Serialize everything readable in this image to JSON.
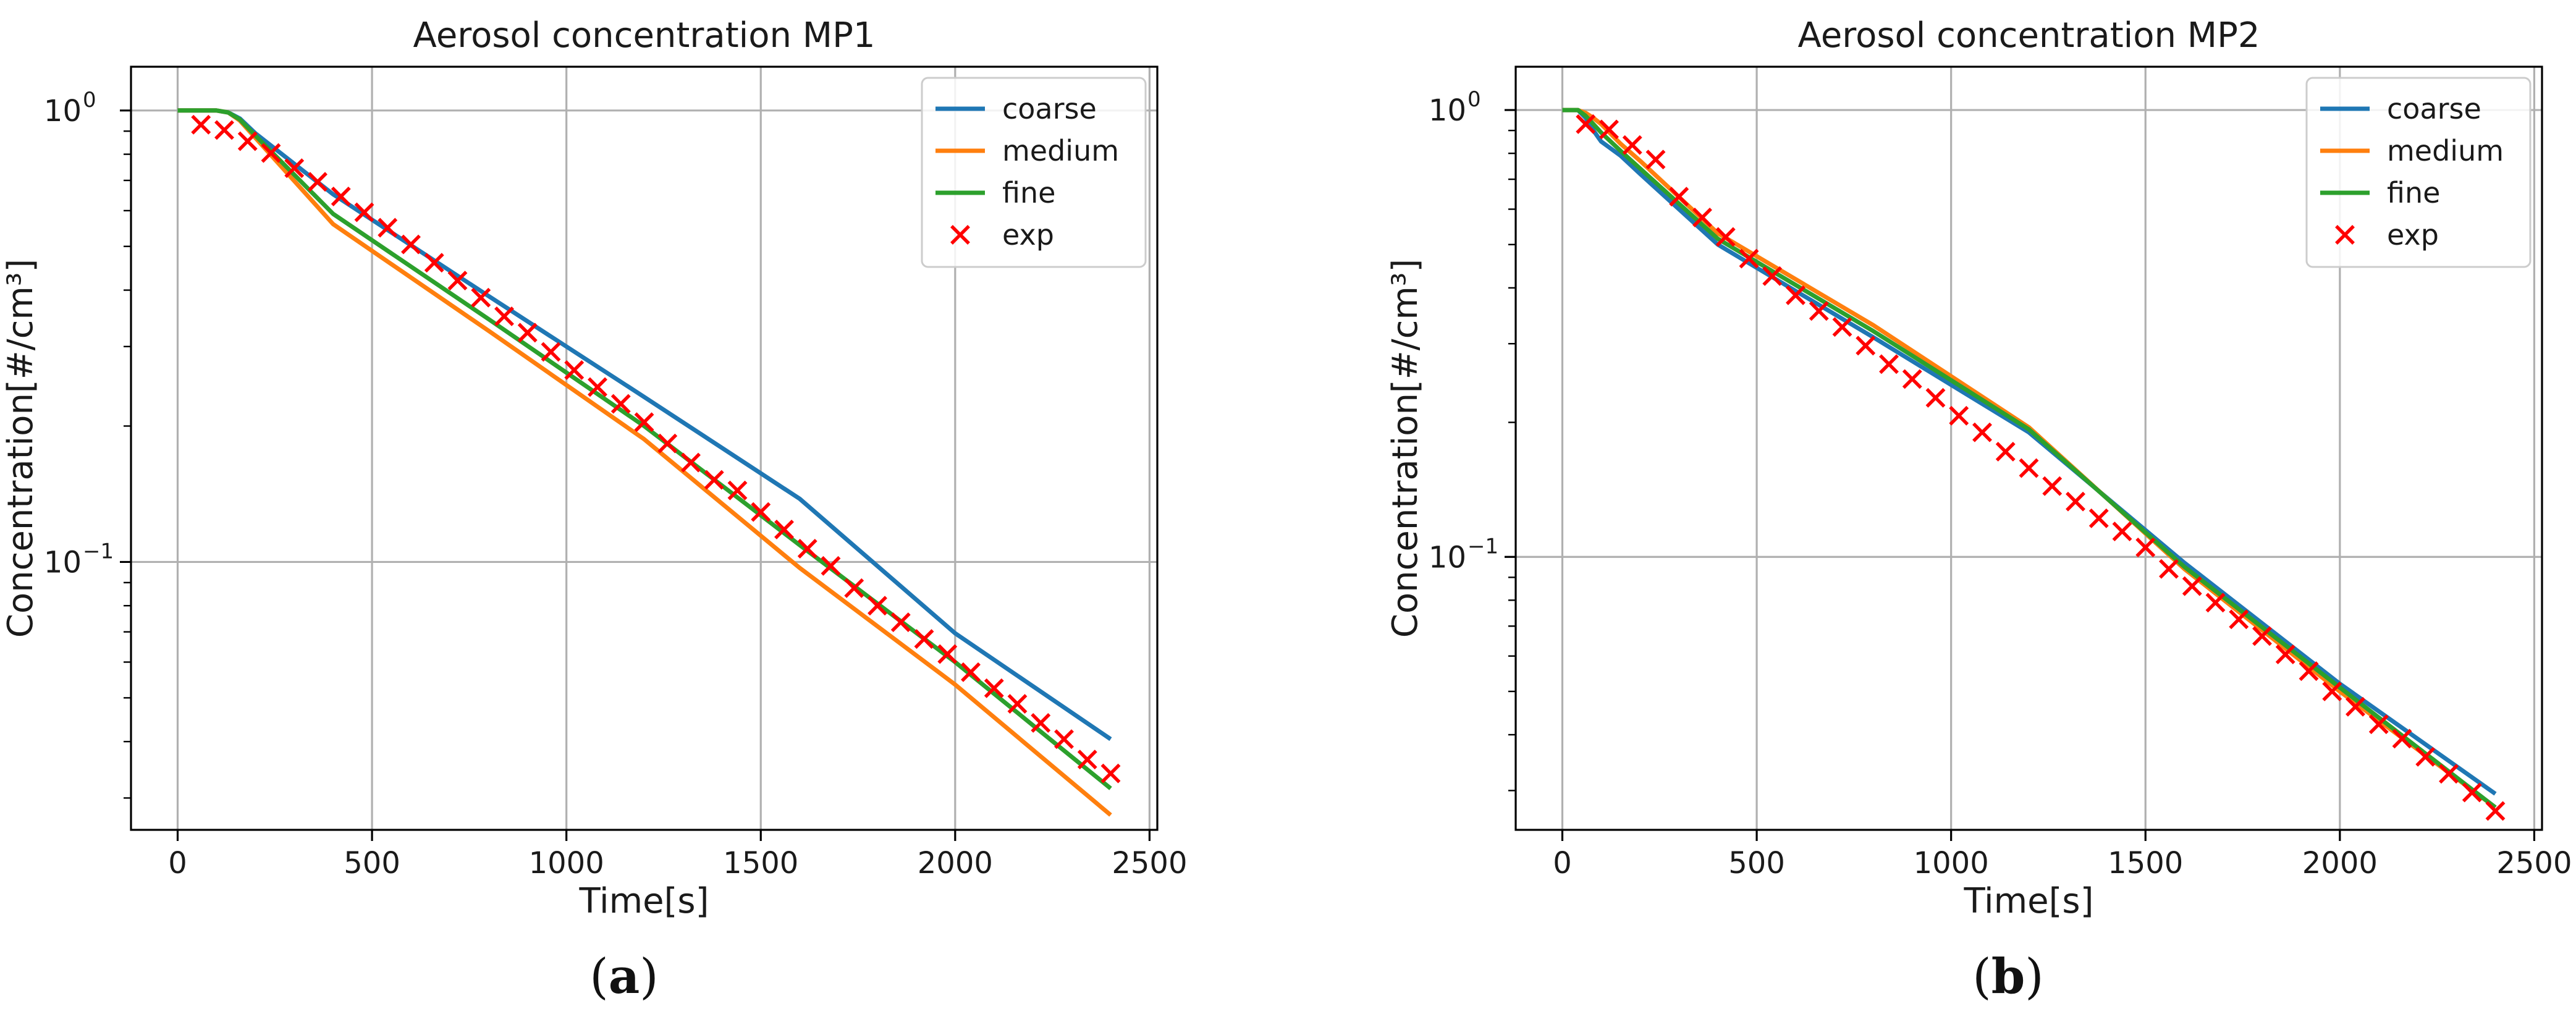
{
  "colors": {
    "coarse": "#1f77b4",
    "medium": "#ff7f0e",
    "fine": "#2ca02c",
    "exp": "#ff0000",
    "grid": "#b0b0b0",
    "axes": "#000000"
  },
  "chart_data": [
    {
      "type": "line",
      "panel_label": "a",
      "title": "Aerosol concentration MP1",
      "xlabel": "Time[s]",
      "ylabel": "Concentration[#/cm³]",
      "xscale": "linear",
      "yscale": "log",
      "xlim": [
        -120,
        2520
      ],
      "ylim": [
        0.0255,
        1.25
      ],
      "xticks": [
        0,
        500,
        1000,
        1500,
        2000,
        2500
      ],
      "xtick_labels": [
        "0",
        "500",
        "1000",
        "1500",
        "2000",
        "2500"
      ],
      "yticks": [
        1.0,
        0.1
      ],
      "ytick_labels": [
        {
          "base": "10",
          "exp": "0"
        },
        {
          "base": "10",
          "exp": "−1"
        }
      ],
      "grid": true,
      "legend_position": "top-right",
      "series": [
        {
          "name": "coarse",
          "style": "line",
          "x": [
            0,
            100,
            130,
            160,
            200,
            400,
            800,
            1200,
            1600,
            2000,
            2400
          ],
          "y": [
            1.0,
            1.0,
            0.99,
            0.96,
            0.89,
            0.652,
            0.388,
            0.232,
            0.138,
            0.0695,
            0.0405
          ]
        },
        {
          "name": "medium",
          "style": "line",
          "x": [
            0,
            100,
            130,
            160,
            200,
            400,
            800,
            1200,
            1600,
            2000,
            2400
          ],
          "y": [
            1.0,
            1.0,
            0.99,
            0.95,
            0.87,
            0.56,
            0.325,
            0.187,
            0.097,
            0.0535,
            0.0275
          ]
        },
        {
          "name": "fine",
          "style": "line",
          "x": [
            0,
            100,
            130,
            160,
            200,
            400,
            800,
            1200,
            1600,
            2000,
            2400
          ],
          "y": [
            1.0,
            1.0,
            0.99,
            0.955,
            0.88,
            0.59,
            0.345,
            0.2,
            0.109,
            0.06,
            0.0315
          ]
        },
        {
          "name": "exp",
          "style": "marker-x",
          "x": [
            60,
            120,
            180,
            240,
            300,
            360,
            420,
            480,
            540,
            600,
            660,
            720,
            780,
            840,
            900,
            960,
            1020,
            1080,
            1140,
            1200,
            1260,
            1320,
            1380,
            1440,
            1500,
            1560,
            1620,
            1680,
            1740,
            1800,
            1860,
            1920,
            1980,
            2040,
            2100,
            2160,
            2220,
            2280,
            2340,
            2400
          ],
          "y": [
            0.93,
            0.905,
            0.855,
            0.805,
            0.745,
            0.695,
            0.645,
            0.595,
            0.55,
            0.505,
            0.46,
            0.42,
            0.385,
            0.35,
            0.322,
            0.292,
            0.266,
            0.244,
            0.224,
            0.204,
            0.183,
            0.166,
            0.152,
            0.144,
            0.129,
            0.118,
            0.107,
            0.098,
            0.0875,
            0.08,
            0.0735,
            0.0675,
            0.0625,
            0.057,
            0.0525,
            0.0485,
            0.044,
            0.0405,
            0.0365,
            0.034
          ]
        }
      ]
    },
    {
      "type": "line",
      "panel_label": "b",
      "title": "Aerosol concentration MP2",
      "xlabel": "Time[s]",
      "ylabel": "Concentration[#/cm³]",
      "xscale": "linear",
      "yscale": "log",
      "xlim": [
        -120,
        2520
      ],
      "ylim": [
        0.0245,
        1.25
      ],
      "xticks": [
        0,
        500,
        1000,
        1500,
        2000,
        2500
      ],
      "xtick_labels": [
        "0",
        "500",
        "1000",
        "1500",
        "2000",
        "2500"
      ],
      "yticks": [
        1.0,
        0.1
      ],
      "ytick_labels": [
        {
          "base": "10",
          "exp": "0"
        },
        {
          "base": "10",
          "exp": "−1"
        }
      ],
      "grid": true,
      "legend_position": "top-right",
      "series": [
        {
          "name": "coarse",
          "style": "line",
          "x": [
            0,
            40,
            60,
            80,
            100,
            150,
            200,
            400,
            800,
            1200,
            1600,
            2000,
            2400
          ],
          "y": [
            1.0,
            1.0,
            0.96,
            0.9,
            0.85,
            0.79,
            0.72,
            0.5,
            0.31,
            0.19,
            0.097,
            0.052,
            0.0295
          ]
        },
        {
          "name": "medium",
          "style": "line",
          "x": [
            0,
            40,
            60,
            80,
            100,
            150,
            200,
            400,
            800,
            1200,
            1600,
            2000,
            2400
          ],
          "y": [
            1.0,
            1.0,
            0.985,
            0.96,
            0.93,
            0.84,
            0.77,
            0.53,
            0.33,
            0.195,
            0.094,
            0.05,
            0.0275
          ]
        },
        {
          "name": "fine",
          "style": "line",
          "x": [
            0,
            40,
            60,
            80,
            100,
            150,
            200,
            400,
            800,
            1200,
            1600,
            2000,
            2400
          ],
          "y": [
            1.0,
            1.0,
            0.97,
            0.93,
            0.89,
            0.81,
            0.74,
            0.515,
            0.32,
            0.193,
            0.095,
            0.051,
            0.0275
          ]
        },
        {
          "name": "exp",
          "style": "marker-x",
          "x": [
            60,
            120,
            180,
            240,
            300,
            360,
            420,
            480,
            540,
            600,
            660,
            720,
            780,
            840,
            900,
            960,
            1020,
            1080,
            1140,
            1200,
            1260,
            1320,
            1380,
            1440,
            1500,
            1560,
            1620,
            1680,
            1740,
            1800,
            1860,
            1920,
            1980,
            2040,
            2100,
            2160,
            2220,
            2280,
            2340,
            2400
          ],
          "y": [
            0.93,
            0.905,
            0.835,
            0.775,
            0.64,
            0.575,
            0.52,
            0.465,
            0.425,
            0.385,
            0.355,
            0.327,
            0.297,
            0.27,
            0.25,
            0.227,
            0.207,
            0.19,
            0.172,
            0.158,
            0.144,
            0.133,
            0.122,
            0.114,
            0.105,
            0.094,
            0.086,
            0.079,
            0.0725,
            0.0665,
            0.0605,
            0.0555,
            0.05,
            0.0462,
            0.0422,
            0.0392,
            0.0357,
            0.0327,
            0.0297,
            0.027
          ]
        }
      ]
    }
  ]
}
